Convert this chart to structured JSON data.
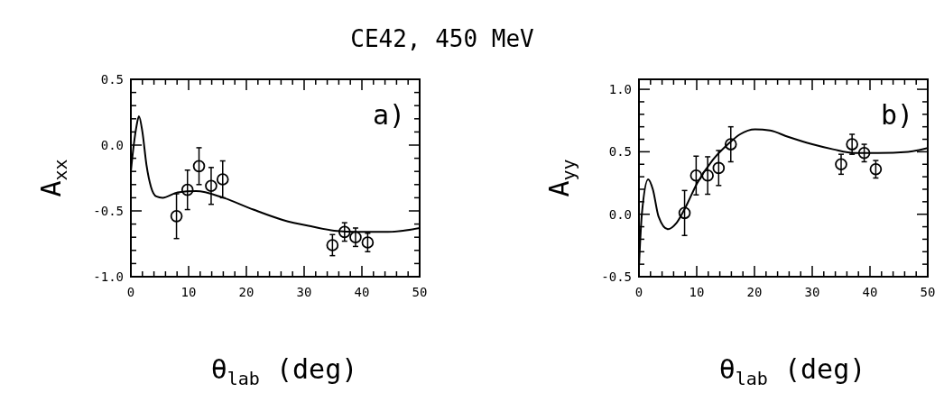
{
  "chart_data": [
    {
      "type": "line",
      "title": "CE42, 450 MeV",
      "xlabel": "θ$_{lab}$ (deg)",
      "ylabel": "A$_{xx}$",
      "annotations": [
        "a)"
      ],
      "xlim": [
        0,
        50
      ],
      "ylim": [
        -1.0,
        0.5
      ],
      "xticks": [
        0,
        {
          "value": 2,
          "label": null
        },
        {
          "value": 4,
          "label": null
        },
        {
          "value": 6,
          "label": null
        },
        {
          "value": 8,
          "label": null
        },
        10,
        {
          "value": 12,
          "label": null
        },
        {
          "value": 14,
          "label": null
        },
        {
          "value": 16,
          "label": null
        },
        {
          "value": 18,
          "label": null
        },
        20,
        {
          "value": 22,
          "label": null
        },
        {
          "value": 24,
          "label": null
        },
        {
          "value": 26,
          "label": null
        },
        {
          "value": 28,
          "label": null
        },
        30,
        {
          "value": 32,
          "label": null
        },
        {
          "value": 34,
          "label": null
        },
        {
          "value": 36,
          "label": null
        },
        {
          "value": 38,
          "label": null
        },
        40,
        {
          "value": 42,
          "label": null
        },
        {
          "value": 44,
          "label": null
        },
        {
          "value": 46,
          "label": null
        },
        {
          "value": 48,
          "label": null
        },
        50
      ],
      "yticks": [
        {
          "value": -1.0,
          "label": "-1.0"
        },
        {
          "value": -0.9,
          "label": null
        },
        {
          "value": -0.8,
          "label": null
        },
        {
          "value": -0.7,
          "label": null
        },
        {
          "value": -0.6,
          "label": null
        },
        {
          "value": -0.5,
          "label": "-0.5"
        },
        {
          "value": -0.4,
          "label": null
        },
        {
          "value": -0.3,
          "label": null
        },
        {
          "value": -0.2,
          "label": null
        },
        {
          "value": -0.1,
          "label": null
        },
        {
          "value": 0,
          "label": "0.0"
        },
        {
          "value": 0.1,
          "label": null
        },
        {
          "value": 0.2,
          "label": null
        },
        {
          "value": 0.3,
          "label": null
        },
        {
          "value": 0.4,
          "label": null
        },
        {
          "value": 0.5,
          "label": "0.5"
        }
      ],
      "series": [
        {
          "type": "line",
          "color": "#000000",
          "line_style": "solid",
          "x": [
            0,
            0.5,
            1,
            1.4,
            2,
            2.7,
            3.5,
            4.4,
            5.5,
            8.1,
            11.3,
            16,
            21.2,
            26.4,
            31.5,
            35.2,
            39.3,
            44.5,
            50
          ],
          "values": [
            -0.2,
            0.0,
            0.15,
            0.22,
            0.1,
            -0.15,
            -0.32,
            -0.39,
            -0.4,
            -0.36,
            -0.35,
            -0.4,
            -0.49,
            -0.57,
            -0.62,
            -0.65,
            -0.66,
            -0.66,
            -0.63
          ]
        },
        {
          "type": "scatter",
          "color": "#000000",
          "marker": "circle",
          "x": [
            7.9,
            9.8,
            11.8,
            13.9,
            15.9,
            34.9,
            37,
            38.9,
            41
          ],
          "values": [
            -0.54,
            -0.34,
            -0.16,
            -0.31,
            -0.26,
            -0.76,
            -0.66,
            -0.7,
            -0.74
          ],
          "errors": [
            0.17,
            0.15,
            0.14,
            0.14,
            0.14,
            0.08,
            0.07,
            0.07,
            0.07
          ]
        }
      ]
    },
    {
      "type": "line",
      "xlabel": "θ$_{lab}$ (deg)",
      "ylabel": "A$_{yy}$",
      "annotations": [
        "b)"
      ],
      "xlim": [
        0,
        50
      ],
      "ylim": [
        -0.5,
        1.08
      ],
      "xticks": [
        0,
        {
          "value": 2,
          "label": null
        },
        {
          "value": 4,
          "label": null
        },
        {
          "value": 6,
          "label": null
        },
        {
          "value": 8,
          "label": null
        },
        10,
        {
          "value": 12,
          "label": null
        },
        {
          "value": 14,
          "label": null
        },
        {
          "value": 16,
          "label": null
        },
        {
          "value": 18,
          "label": null
        },
        20,
        {
          "value": 22,
          "label": null
        },
        {
          "value": 24,
          "label": null
        },
        {
          "value": 26,
          "label": null
        },
        {
          "value": 28,
          "label": null
        },
        30,
        {
          "value": 32,
          "label": null
        },
        {
          "value": 34,
          "label": null
        },
        {
          "value": 36,
          "label": null
        },
        {
          "value": 38,
          "label": null
        },
        40,
        {
          "value": 42,
          "label": null
        },
        {
          "value": 44,
          "label": null
        },
        {
          "value": 46,
          "label": null
        },
        {
          "value": 48,
          "label": null
        },
        50
      ],
      "yticks": [
        {
          "value": -0.5,
          "label": "-0.5"
        },
        {
          "value": -0.4,
          "label": null
        },
        {
          "value": -0.3,
          "label": null
        },
        {
          "value": -0.2,
          "label": null
        },
        {
          "value": -0.1,
          "label": null
        },
        {
          "value": 0,
          "label": "0.0"
        },
        {
          "value": 0.1,
          "label": null
        },
        {
          "value": 0.2,
          "label": null
        },
        {
          "value": 0.3,
          "label": null
        },
        {
          "value": 0.4,
          "label": null
        },
        {
          "value": 0.5,
          "label": "0.5"
        },
        {
          "value": 0.6,
          "label": null
        },
        {
          "value": 0.7,
          "label": null
        },
        {
          "value": 0.8,
          "label": null
        },
        {
          "value": 0.9,
          "label": null
        },
        {
          "value": 1.0,
          "label": "1.0"
        }
      ],
      "series": [
        {
          "type": "line",
          "color": "#000000",
          "line_style": "solid",
          "x": [
            0,
            0.5,
            1.6,
            2.4,
            3.4,
            5,
            6.5,
            8,
            10.1,
            12.7,
            15.4,
            17.5,
            20.1,
            22.7,
            25.8,
            30,
            33.6,
            37.3,
            41.4,
            46.6,
            50
          ],
          "values": [
            -0.42,
            0.0,
            0.28,
            0.2,
            -0.02,
            -0.12,
            -0.07,
            0.05,
            0.25,
            0.43,
            0.56,
            0.64,
            0.68,
            0.67,
            0.62,
            0.56,
            0.52,
            0.49,
            0.49,
            0.5,
            0.53
          ]
        },
        {
          "type": "scatter",
          "color": "#000000",
          "marker": "circle",
          "x": [
            7.9,
            9.9,
            11.9,
            13.8,
            15.9,
            35,
            36.9,
            39,
            41
          ],
          "values": [
            0.01,
            0.31,
            0.31,
            0.37,
            0.56,
            0.4,
            0.56,
            0.49,
            0.36
          ],
          "errors": [
            0.18,
            0.155,
            0.15,
            0.14,
            0.14,
            0.08,
            0.08,
            0.07,
            0.07
          ]
        }
      ]
    }
  ]
}
